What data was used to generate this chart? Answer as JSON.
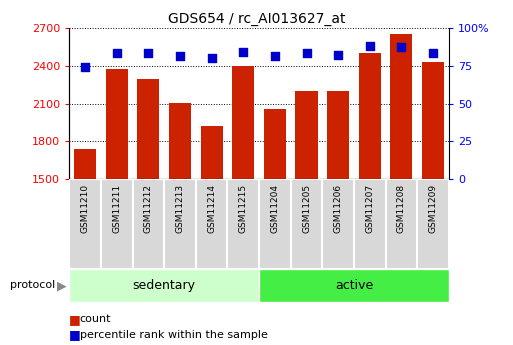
{
  "title": "GDS654 / rc_AI013627_at",
  "categories": [
    "GSM11210",
    "GSM11211",
    "GSM11212",
    "GSM11213",
    "GSM11214",
    "GSM11215",
    "GSM11204",
    "GSM11205",
    "GSM11206",
    "GSM11207",
    "GSM11208",
    "GSM11209"
  ],
  "counts": [
    1740,
    2370,
    2290,
    2100,
    1920,
    2400,
    2060,
    2200,
    2200,
    2500,
    2650,
    2430
  ],
  "percentile_ranks": [
    74,
    83,
    83,
    81,
    80,
    84,
    81,
    83,
    82,
    88,
    87,
    83
  ],
  "bar_color": "#cc2200",
  "dot_color": "#0000cc",
  "ylim_left": [
    1500,
    2700
  ],
  "ylim_right": [
    0,
    100
  ],
  "yticks_left": [
    1500,
    1800,
    2100,
    2400,
    2700
  ],
  "yticks_right": [
    0,
    25,
    50,
    75,
    100
  ],
  "ytick_labels_right": [
    "0",
    "25",
    "50",
    "75",
    "100%"
  ],
  "group1_label": "sedentary",
  "group2_label": "active",
  "group1_indices": [
    0,
    1,
    2,
    3,
    4,
    5
  ],
  "group2_indices": [
    6,
    7,
    8,
    9,
    10,
    11
  ],
  "protocol_label": "protocol",
  "legend_count_label": "count",
  "legend_pct_label": "percentile rank within the sample",
  "bg_color": "#ffffff",
  "group1_color": "#ccffcc",
  "group2_color": "#44ee44",
  "tick_box_color": "#d8d8d8",
  "bar_width": 0.7,
  "dot_size": 40,
  "title_fontsize": 10
}
